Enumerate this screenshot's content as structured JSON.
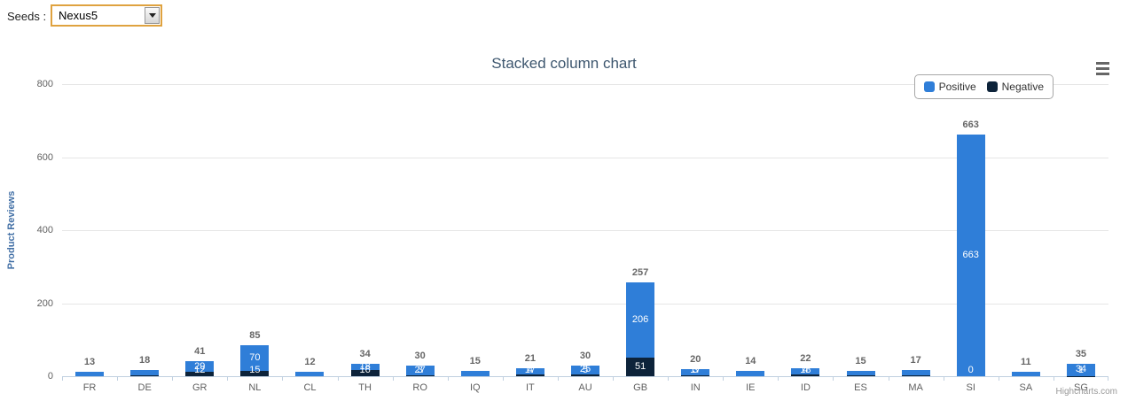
{
  "seeds": {
    "label": "Seeds :",
    "selected": "Nexus5"
  },
  "chart": {
    "title": "Stacked column chart",
    "ylabel": "Product Reviews",
    "credits": "Highcharts.com",
    "series_names": [
      "Positive",
      "Negative"
    ],
    "colors": {
      "positive": "#2f7ed8",
      "negative": "#0d233a"
    }
  },
  "chart_data": {
    "type": "bar",
    "stacked": true,
    "title": "Stacked column chart",
    "xlabel": "",
    "ylabel": "Product Reviews",
    "ylim": [
      0,
      800
    ],
    "yticks": [
      0,
      200,
      400,
      600,
      800
    ],
    "grid": true,
    "legend_position": "top-right",
    "categories": [
      "FR",
      "DE",
      "GR",
      "NL",
      "CL",
      "TH",
      "RO",
      "IQ",
      "IT",
      "AU",
      "GB",
      "IN",
      "IE",
      "ID",
      "ES",
      "MA",
      "SI",
      "SA",
      "SG"
    ],
    "totals": [
      13,
      18,
      41,
      85,
      12,
      34,
      30,
      15,
      21,
      30,
      257,
      20,
      14,
      22,
      15,
      17,
      663,
      11,
      35
    ],
    "series": [
      {
        "name": "Positive",
        "color": "#2f7ed8",
        "values": [
          13,
          16,
          29,
          70,
          12,
          18,
          27,
          15,
          17,
          25,
          206,
          17,
          14,
          18,
          13,
          15,
          663,
          11,
          34
        ],
        "labels": [
          "",
          "",
          "29",
          "70",
          "",
          "18",
          "27",
          "",
          "17",
          "25",
          "206",
          "17",
          "",
          "18",
          "",
          "",
          "663",
          "",
          "34"
        ]
      },
      {
        "name": "Negative",
        "color": "#0d233a",
        "values": [
          0,
          2,
          12,
          15,
          0,
          16,
          3,
          0,
          4,
          5,
          51,
          3,
          0,
          4,
          2,
          2,
          0,
          0,
          1
        ],
        "labels": [
          "",
          "",
          "12",
          "15",
          "",
          "16",
          "3",
          "",
          "4",
          "5",
          "51",
          "3",
          "",
          "4",
          "",
          "",
          "0",
          "",
          "1"
        ]
      }
    ]
  }
}
